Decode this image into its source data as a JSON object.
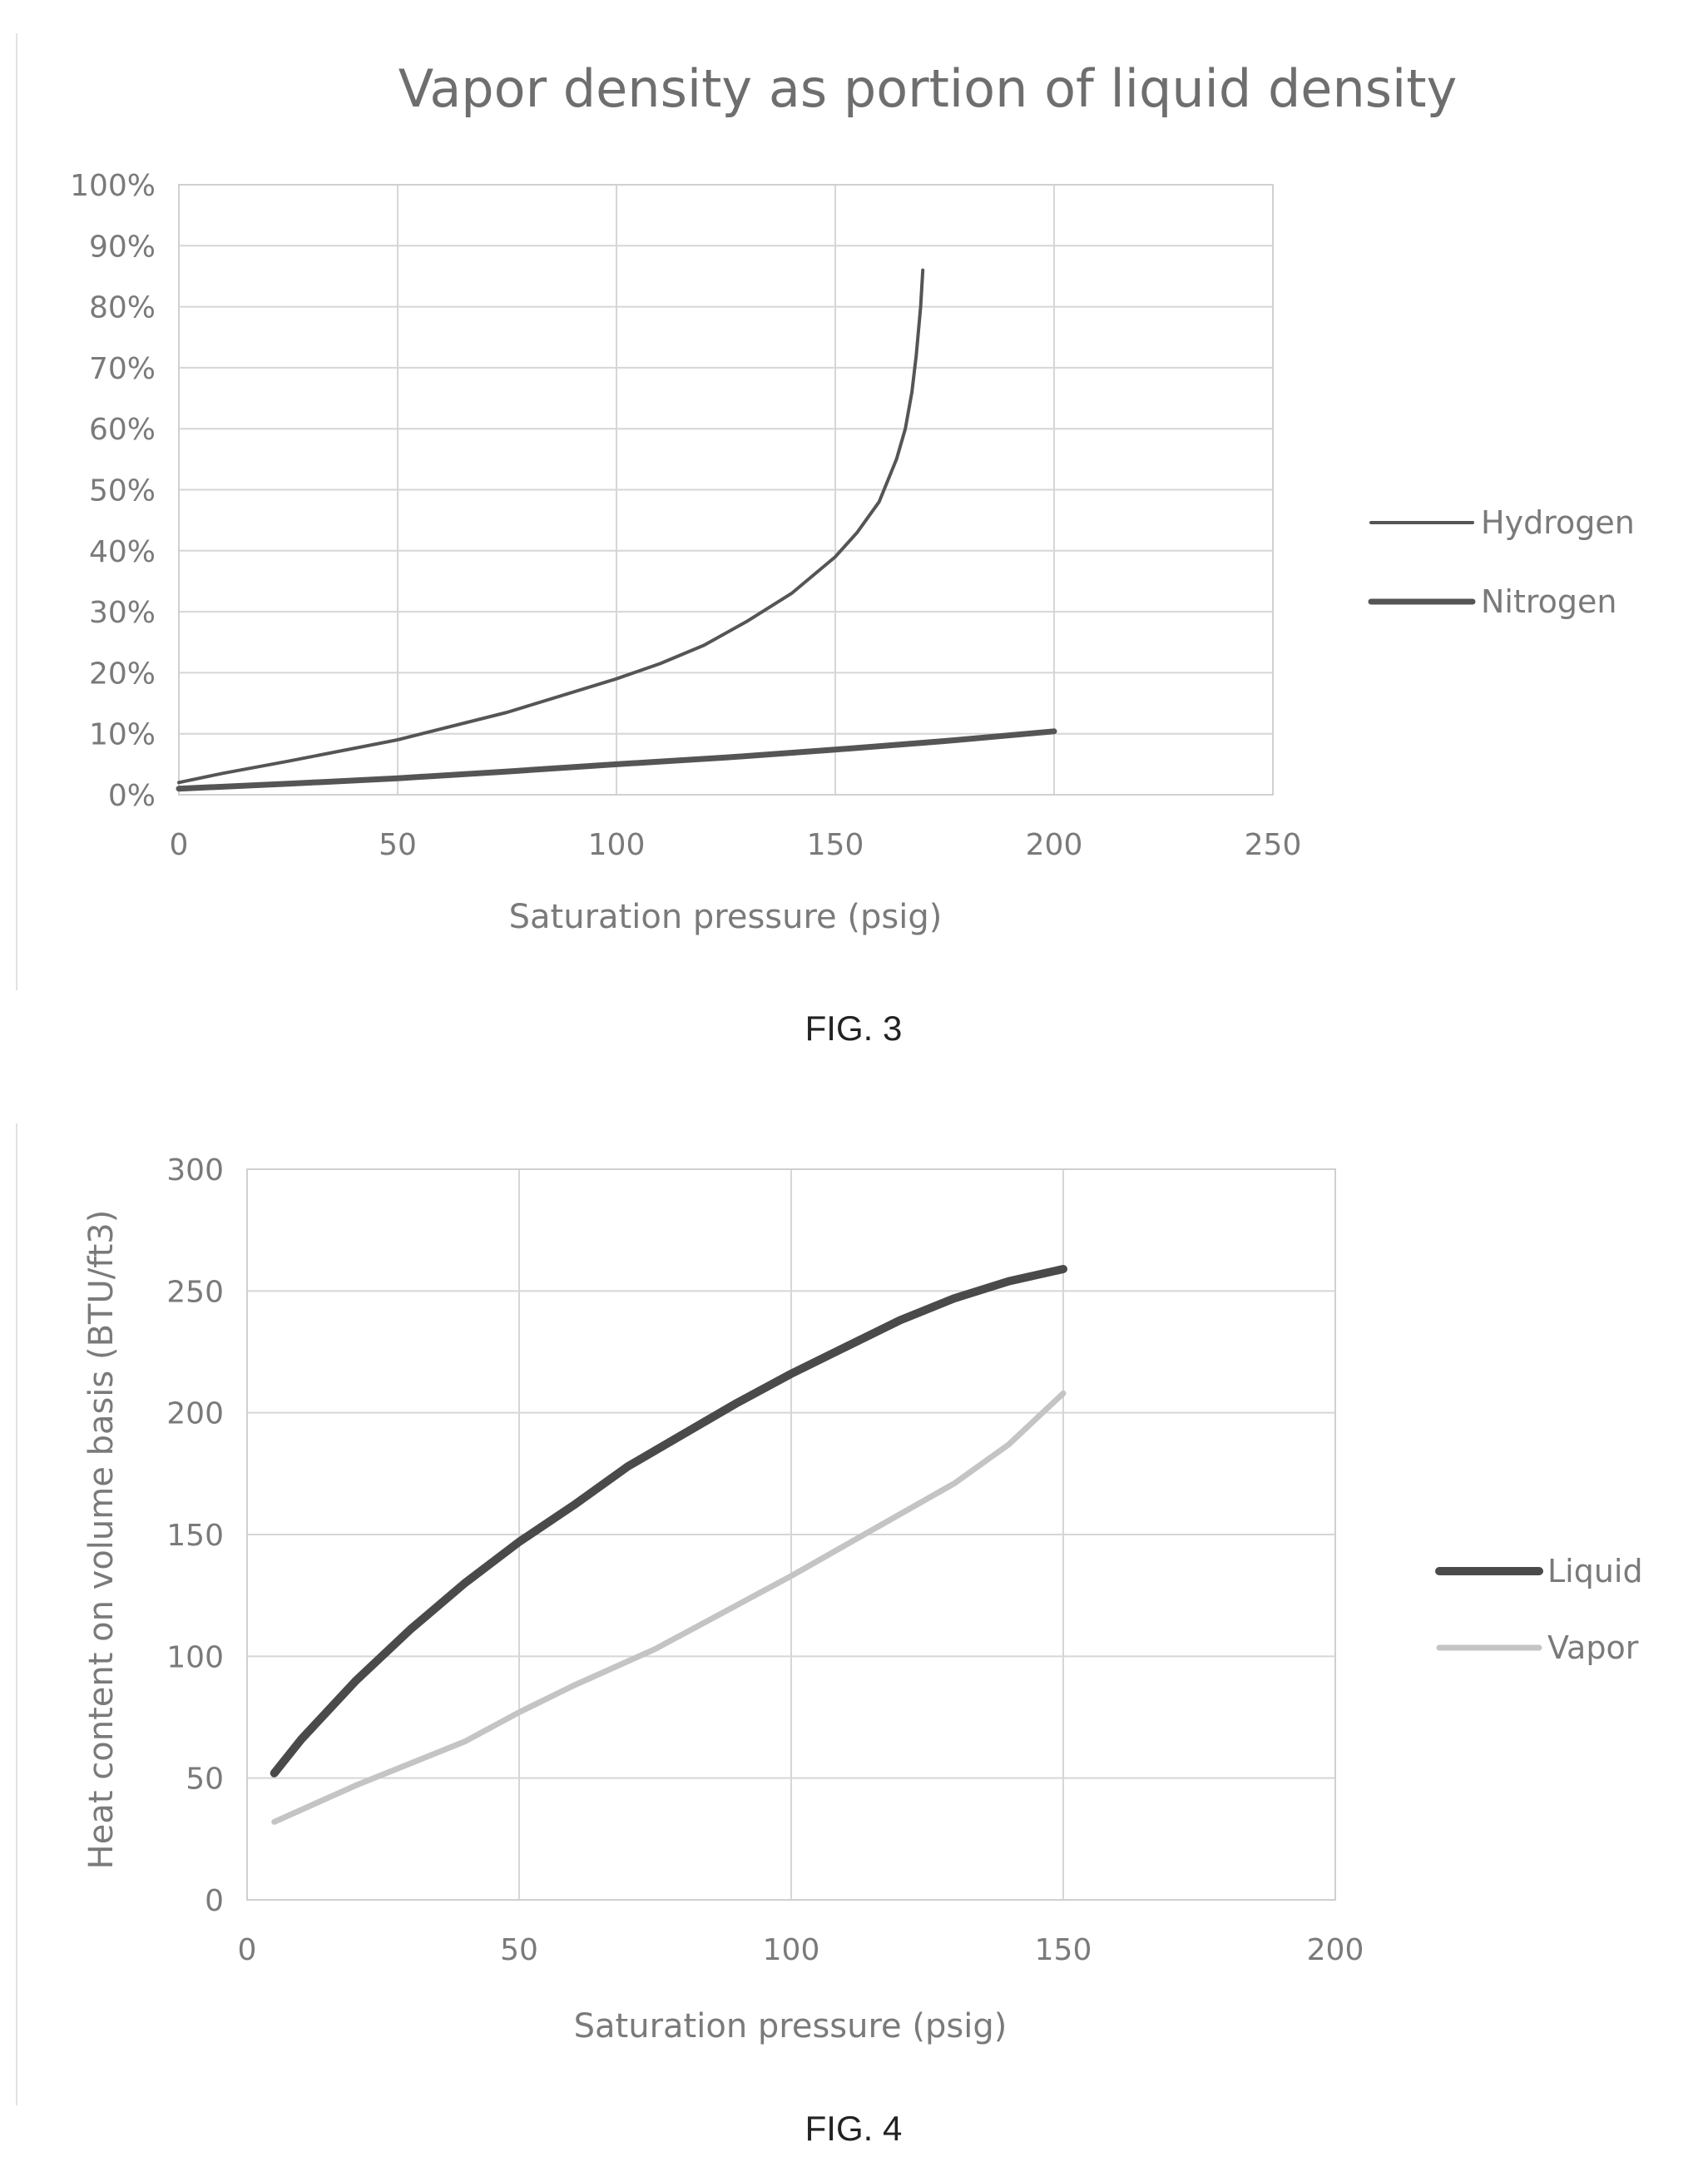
{
  "chart_data": [
    {
      "type": "line",
      "title": "Vapor density as portion of liquid density",
      "xlabel": "Saturation pressure (psig)",
      "ylabel": "",
      "xlim": [
        0,
        250
      ],
      "ylim": [
        0,
        1.0
      ],
      "x_ticks": [
        "0",
        "50",
        "100",
        "150",
        "200",
        "250"
      ],
      "y_ticks": [
        "0%",
        "10%",
        "20%",
        "30%",
        "40%",
        "50%",
        "60%",
        "70%",
        "80%",
        "90%",
        "100%"
      ],
      "grid": true,
      "legend_position": "right",
      "series": [
        {
          "name": "Hydrogen",
          "color": "#555555",
          "points": [
            [
              0,
              0.02
            ],
            [
              10,
              0.035
            ],
            [
              25,
              0.055
            ],
            [
              50,
              0.09
            ],
            [
              75,
              0.135
            ],
            [
              100,
              0.19
            ],
            [
              110,
              0.215
            ],
            [
              120,
              0.245
            ],
            [
              130,
              0.285
            ],
            [
              140,
              0.33
            ],
            [
              150,
              0.39
            ],
            [
              155,
              0.43
            ],
            [
              160,
              0.48
            ],
            [
              164,
              0.55
            ],
            [
              166,
              0.6
            ],
            [
              167.5,
              0.66
            ],
            [
              168.5,
              0.72
            ],
            [
              169.5,
              0.8
            ],
            [
              170,
              0.86
            ]
          ]
        },
        {
          "name": "Nitrogen",
          "color": "#555555",
          "points": [
            [
              0,
              0.01
            ],
            [
              25,
              0.018
            ],
            [
              50,
              0.027
            ],
            [
              75,
              0.038
            ],
            [
              100,
              0.05
            ],
            [
              125,
              0.061
            ],
            [
              150,
              0.074
            ],
            [
              175,
              0.088
            ],
            [
              200,
              0.104
            ]
          ]
        }
      ]
    },
    {
      "type": "line",
      "title": "",
      "xlabel": "Saturation pressure (psig)",
      "ylabel": "Heat content on volume basis (BTU/ft3)",
      "xlim": [
        0,
        200
      ],
      "ylim": [
        0,
        300
      ],
      "x_ticks": [
        "0",
        "50",
        "100",
        "150",
        "200"
      ],
      "y_ticks": [
        "0",
        "50",
        "100",
        "150",
        "200",
        "250",
        "300"
      ],
      "grid": true,
      "legend_position": "right",
      "series": [
        {
          "name": "Liquid",
          "color": "#4a4a4a",
          "points": [
            [
              5,
              52
            ],
            [
              10,
              66
            ],
            [
              20,
              90
            ],
            [
              30,
              111
            ],
            [
              40,
              130
            ],
            [
              50,
              147
            ],
            [
              60,
              162
            ],
            [
              70,
              178
            ],
            [
              80,
              191
            ],
            [
              90,
              204
            ],
            [
              100,
              216
            ],
            [
              110,
              227
            ],
            [
              120,
              238
            ],
            [
              130,
              247
            ],
            [
              140,
              254
            ],
            [
              150,
              259
            ]
          ]
        },
        {
          "name": "Vapor",
          "color": "#c4c4c4",
          "points": [
            [
              5,
              32
            ],
            [
              20,
              47
            ],
            [
              40,
              65
            ],
            [
              50,
              77
            ],
            [
              60,
              88
            ],
            [
              75,
              103
            ],
            [
              90,
              121
            ],
            [
              100,
              133
            ],
            [
              115,
              152
            ],
            [
              130,
              171
            ],
            [
              140,
              187
            ],
            [
              150,
              208
            ]
          ]
        }
      ]
    }
  ],
  "captions": {
    "fig3": "FIG. 3",
    "fig4": "FIG. 4"
  }
}
